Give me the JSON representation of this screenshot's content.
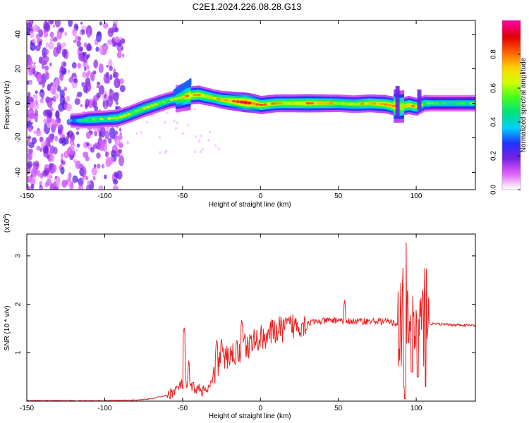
{
  "title": "C2E1.2024.226.08.28.G13",
  "chart_data": [
    {
      "type": "heatmap",
      "xlabel": "Height of straight line (km)",
      "ylabel": "Frequency (Hz)",
      "xlim": [
        -150,
        138
      ],
      "ylim": [
        -50,
        48
      ],
      "xticks": [
        -150,
        -100,
        -50,
        0,
        50,
        100
      ],
      "yticks": [
        -40,
        -20,
        0,
        20,
        40
      ],
      "colorbar": {
        "label": "Normalized spectral amplitude",
        "range": [
          0,
          1
        ],
        "ticks": [
          "0.0",
          "0.2",
          "0.4",
          "0.6",
          "0.8"
        ],
        "tick_values": [
          0,
          0.2,
          0.4,
          0.6,
          0.8
        ],
        "colors": [
          "#ffffff",
          "#e060ff",
          "#7a20e0",
          "#2030ff",
          "#00d0ff",
          "#00e080",
          "#40ff20",
          "#d0ff00",
          "#ffd000",
          "#ff6000",
          "#e00000",
          "#ff00a0"
        ]
      },
      "ridge": {
        "x": [
          -122,
          -115,
          -110,
          -100,
          -92,
          -85,
          -75,
          -65,
          -58,
          -52,
          -46,
          -40,
          -35,
          -30,
          -25,
          -20,
          -15,
          -10,
          -5,
          0,
          10,
          20,
          30,
          40,
          50,
          60,
          70,
          80,
          85,
          90,
          95,
          100,
          105,
          110,
          120,
          138
        ],
        "y": [
          -10,
          -10,
          -9.5,
          -9,
          -8.5,
          -6.5,
          -3,
          0,
          2,
          3,
          4.5,
          5,
          4,
          3,
          2,
          1.5,
          1,
          0.5,
          0,
          -1,
          0,
          0,
          0,
          0,
          0,
          -0.5,
          0,
          -0.5,
          -1.5,
          -2,
          -1,
          -2,
          0,
          0,
          0,
          0
        ],
        "intensity": [
          0.35,
          0.45,
          0.55,
          0.55,
          0.6,
          0.6,
          0.6,
          0.6,
          0.55,
          0.6,
          0.75,
          0.75,
          0.7,
          0.65,
          0.7,
          0.8,
          0.85,
          0.95,
          0.85,
          0.75,
          0.7,
          0.7,
          0.75,
          0.7,
          0.65,
          0.65,
          0.7,
          0.75,
          0.8,
          0.7,
          0.75,
          0.7,
          0.55,
          0.5,
          0.5,
          0.5
        ]
      }
    },
    {
      "type": "line",
      "xlabel": "Height of straight line (km)",
      "ylabel": "SNR (10 * v/v)",
      "scale_label": "(x10",
      "scale_exp": "4",
      "scale_close": ")",
      "xlim": [
        -150,
        138
      ],
      "ylim": [
        0,
        3.45
      ],
      "xticks": [
        -150,
        -100,
        -50,
        0,
        50,
        100
      ],
      "yticks": [
        1,
        2,
        3
      ],
      "color": "#e82020",
      "envelope": {
        "x": [
          -150,
          -100,
          -80,
          -70,
          -60,
          -55,
          -50,
          -45,
          -40,
          -35,
          -32,
          -28,
          -20,
          -10,
          0,
          10,
          20,
          30,
          40,
          50,
          55,
          60,
          70,
          80,
          85,
          88,
          92,
          95,
          98,
          100,
          104,
          107,
          110,
          120,
          138
        ],
        "y": [
          0.01,
          0.01,
          0.02,
          0.05,
          0.12,
          0.22,
          0.35,
          0.3,
          0.25,
          0.2,
          0.3,
          0.75,
          0.95,
          1.1,
          1.3,
          1.45,
          1.55,
          1.62,
          1.65,
          1.68,
          1.65,
          1.65,
          1.65,
          1.65,
          1.62,
          1.6,
          1.55,
          1.55,
          1.55,
          1.55,
          1.58,
          1.6,
          1.6,
          1.58,
          1.56
        ]
      },
      "spikes": [
        {
          "x": -49,
          "y": 1.55
        },
        {
          "x": -46,
          "y": 0.85
        },
        {
          "x": -28,
          "y": 1.3
        },
        {
          "x": -25,
          "y": 1.3
        },
        {
          "x": -12,
          "y": 1.7
        },
        {
          "x": -10,
          "y": 1.4
        },
        {
          "x": 5,
          "y": 1.5
        },
        {
          "x": 54,
          "y": 2.1
        },
        {
          "x": 92,
          "y": 2.9
        },
        {
          "x": 93,
          "y": 3.45
        },
        {
          "x": 97,
          "y": 2.55
        },
        {
          "x": 101,
          "y": 3.05
        },
        {
          "x": 106,
          "y": 2.9
        }
      ],
      "dips": [
        {
          "x": 92,
          "y": 0.3
        },
        {
          "x": 93,
          "y": 0.05
        },
        {
          "x": 97,
          "y": 0.6
        },
        {
          "x": 101,
          "y": 0.5
        },
        {
          "x": 106,
          "y": 0.3
        }
      ]
    }
  ]
}
